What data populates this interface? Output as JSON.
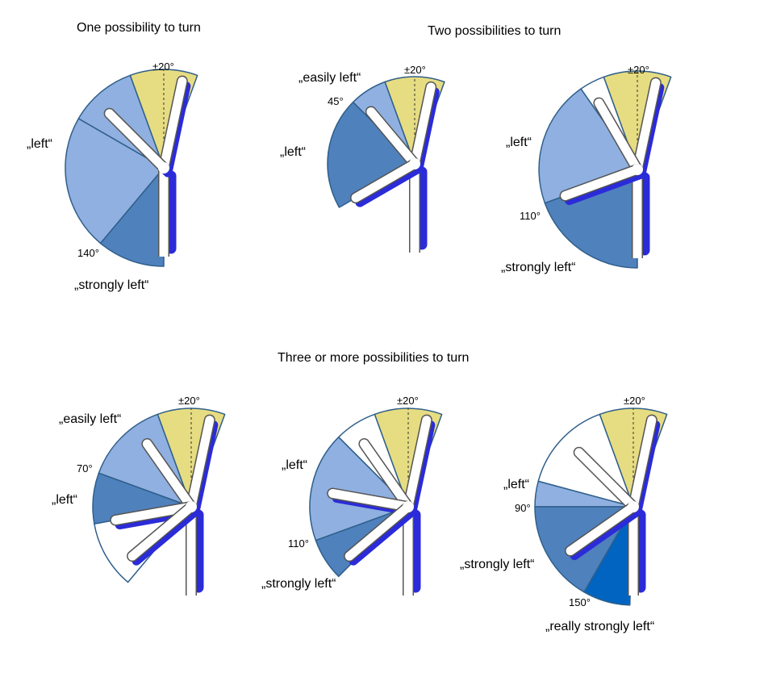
{
  "titles": {
    "one": "One possibility to turn",
    "two": "Two possibilities to turn",
    "three": "Three or more possibilities to turn"
  },
  "labels": {
    "straight": "±20°",
    "easily_left": "„easily left“",
    "left": "„left“",
    "strongly_left": "„strongly left“",
    "really_strongly_left": "„really strongly left“",
    "deg_45": "45°",
    "deg_70": "70°",
    "deg_90": "90°",
    "deg_110": "110°",
    "deg_140": "140°",
    "deg_150": "150°"
  },
  "colors": {
    "straight_sector": "#e6dc82",
    "light_blue_sector": "#8fb0e0",
    "mid_blue_sector": "#4f81bd",
    "deep_blue_sector": "#0064c0",
    "sector_border": "#2f5f8a",
    "arm_shadow": "#2b2bd9",
    "arm": "#ffffff",
    "arm_border": "#555555"
  },
  "diagrams": [
    {
      "id": "one-possibility",
      "sectors": [
        {
          "from": -20,
          "to": 20,
          "kind": "straight"
        },
        {
          "from": -60,
          "to": -20,
          "kind": "light"
        },
        {
          "from": -140,
          "to": -60,
          "kind": "light"
        },
        {
          "from": -180,
          "to": -140,
          "kind": "mid"
        }
      ],
      "arms": [
        0,
        -45
      ],
      "dashed_line": true
    },
    {
      "id": "two-easily-left",
      "sectors": [
        {
          "from": -20,
          "to": 20,
          "kind": "straight"
        },
        {
          "from": -45,
          "to": -20,
          "kind": "light"
        },
        {
          "from": -120,
          "to": -45,
          "kind": "mid"
        }
      ],
      "arms": [
        0,
        -40,
        -120
      ],
      "dashed_line": true
    },
    {
      "id": "two-strongly-left",
      "sectors": [
        {
          "from": -20,
          "to": 20,
          "kind": "straight"
        },
        {
          "from": -35,
          "to": -20,
          "kind": "white"
        },
        {
          "from": -110,
          "to": -35,
          "kind": "light"
        },
        {
          "from": -180,
          "to": -110,
          "kind": "mid"
        }
      ],
      "arms": [
        0,
        -30,
        -110
      ],
      "dashed_line": true
    },
    {
      "id": "three-easily-left-left",
      "sectors": [
        {
          "from": -20,
          "to": 20,
          "kind": "straight"
        },
        {
          "from": -70,
          "to": -20,
          "kind": "light"
        },
        {
          "from": -100,
          "to": -70,
          "kind": "mid"
        },
        {
          "from": -140,
          "to": -100,
          "kind": "white"
        }
      ],
      "arms": [
        0,
        -35,
        -100,
        -130
      ],
      "dashed_line": true
    },
    {
      "id": "three-left-strongly-left",
      "sectors": [
        {
          "from": -20,
          "to": 20,
          "kind": "straight"
        },
        {
          "from": -45,
          "to": -20,
          "kind": "white"
        },
        {
          "from": -110,
          "to": -45,
          "kind": "light"
        },
        {
          "from": -135,
          "to": -110,
          "kind": "mid"
        }
      ],
      "arms": [
        0,
        -35,
        -80,
        -130
      ],
      "dashed_line": true
    },
    {
      "id": "three-really-strongly-left",
      "sectors": [
        {
          "from": -20,
          "to": 20,
          "kind": "straight"
        },
        {
          "from": -75,
          "to": -20,
          "kind": "white"
        },
        {
          "from": -90,
          "to": -75,
          "kind": "light"
        },
        {
          "from": -150,
          "to": -90,
          "kind": "mid"
        },
        {
          "from": -178,
          "to": -150,
          "kind": "deep"
        }
      ],
      "arms": [
        0,
        -45,
        -125
      ],
      "dashed_line": true
    }
  ]
}
